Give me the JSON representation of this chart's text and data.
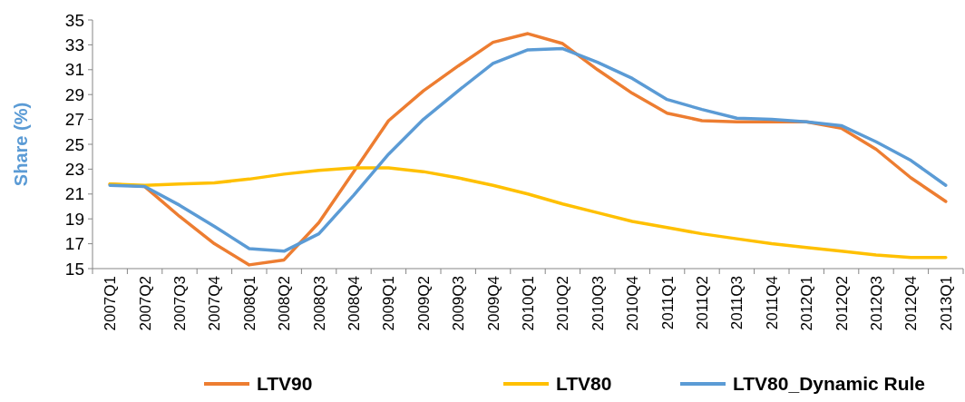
{
  "chart_data": {
    "type": "line",
    "ylabel": "Share (%)",
    "categories": [
      "2007Q1",
      "2007Q2",
      "2007Q3",
      "2007Q4",
      "2008Q1",
      "2008Q2",
      "2008Q3",
      "2008Q4",
      "2009Q1",
      "2009Q2",
      "2009Q3",
      "2009Q4",
      "2010Q1",
      "2010Q2",
      "2010Q3",
      "2010Q4",
      "2011Q1",
      "2011Q2",
      "2011Q3",
      "2011Q4",
      "2012Q1",
      "2012Q2",
      "2012Q3",
      "2012Q4",
      "2013Q1"
    ],
    "series": [
      {
        "name": "LTV90",
        "color": "#ed7d31",
        "values": [
          21.8,
          21.6,
          19.2,
          17.0,
          15.3,
          15.7,
          18.7,
          22.8,
          26.9,
          29.3,
          31.3,
          33.2,
          33.9,
          33.1,
          31.0,
          29.1,
          27.5,
          26.9,
          26.8,
          26.8,
          26.8,
          26.3,
          24.6,
          22.3,
          20.4
        ]
      },
      {
        "name": "LTV80",
        "color": "#ffc000",
        "values": [
          21.8,
          21.7,
          21.8,
          21.9,
          22.2,
          22.6,
          22.9,
          23.1,
          23.1,
          22.8,
          22.3,
          21.7,
          21.0,
          20.2,
          19.5,
          18.8,
          18.3,
          17.8,
          17.4,
          17.0,
          16.7,
          16.4,
          16.1,
          15.9,
          15.9
        ]
      },
      {
        "name": "LTV80_Dynamic Rule",
        "color": "#5b9bd5",
        "values": [
          21.7,
          21.6,
          20.1,
          18.4,
          16.6,
          16.4,
          17.8,
          20.9,
          24.2,
          27.0,
          29.3,
          31.5,
          32.6,
          32.7,
          31.6,
          30.3,
          28.6,
          27.8,
          27.1,
          27.0,
          26.8,
          26.5,
          25.2,
          23.7,
          21.7
        ]
      }
    ],
    "ylim": [
      15,
      35
    ],
    "yticks": [
      15,
      17,
      19,
      21,
      23,
      25,
      27,
      29,
      31,
      33,
      35
    ],
    "grid": false,
    "legend": "bottom",
    "marker": "none",
    "line_style": "solid"
  }
}
